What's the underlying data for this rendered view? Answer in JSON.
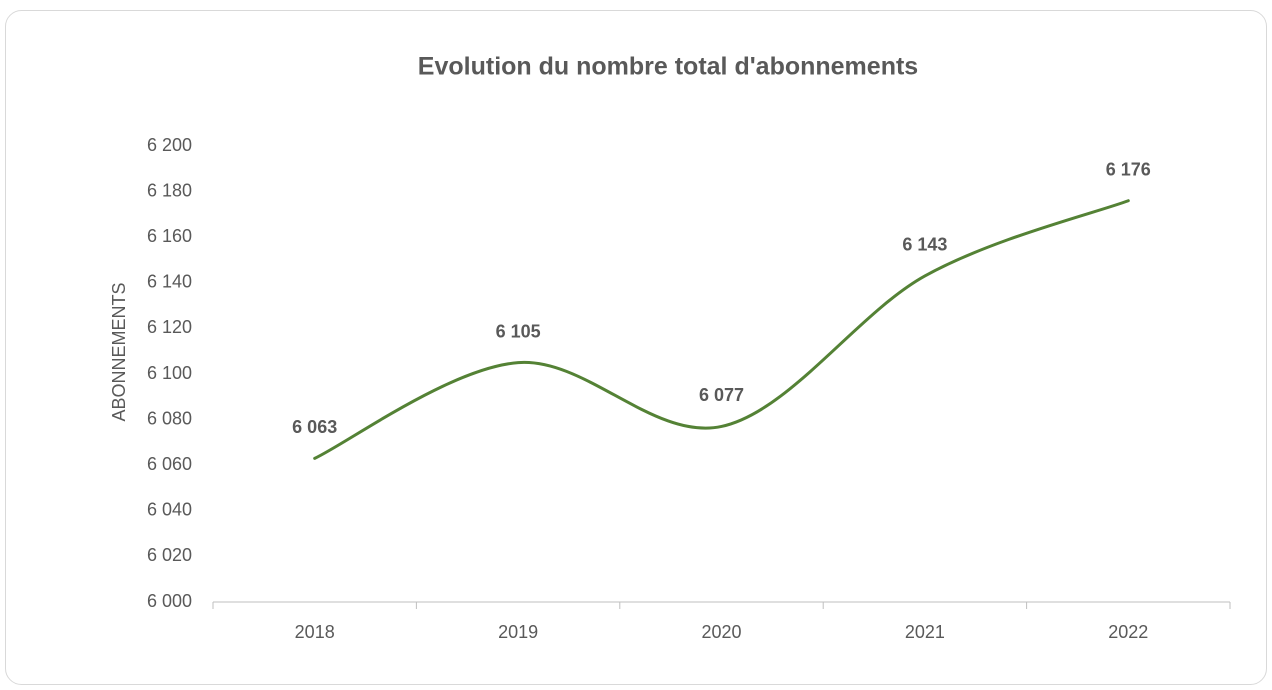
{
  "chart_data": {
    "type": "line",
    "title": "Evolution du nombre total d'abonnements",
    "y_label": "ABONNEMENTS",
    "categories": [
      "2018",
      "2019",
      "2020",
      "2021",
      "2022"
    ],
    "values": [
      6063,
      6105,
      6077,
      6143,
      6176
    ],
    "value_labels": [
      "6 063",
      "6 105",
      "6 077",
      "6 143",
      "6 176"
    ],
    "color": "#548235",
    "smooth": true,
    "grid": false,
    "ylim": [
      6000,
      6200
    ],
    "yticks": [
      {
        "value": 6000,
        "label": "6 000"
      },
      {
        "value": 6020,
        "label": "6 020"
      },
      {
        "value": 6040,
        "label": "6 040"
      },
      {
        "value": 6060,
        "label": "6 060"
      },
      {
        "value": 6080,
        "label": "6 080"
      },
      {
        "value": 6100,
        "label": "6 100"
      },
      {
        "value": 6120,
        "label": "6 120"
      },
      {
        "value": 6140,
        "label": "6 140"
      },
      {
        "value": 6160,
        "label": "6 160"
      },
      {
        "value": 6180,
        "label": "6 180"
      },
      {
        "value": 6200,
        "label": "6 200"
      }
    ]
  }
}
